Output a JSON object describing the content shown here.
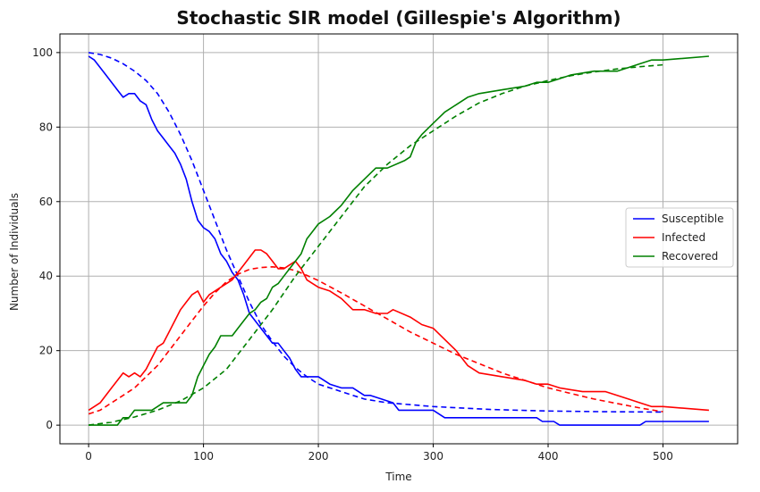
{
  "chart_data": {
    "type": "line",
    "title": "Stochastic SIR model (Gillespie's Algorithm)",
    "xlabel": "Time",
    "ylabel": "Number of Individuals",
    "xlim": [
      -25,
      565
    ],
    "ylim": [
      -5,
      105
    ],
    "xticks": [
      0,
      100,
      200,
      300,
      400,
      500
    ],
    "yticks": [
      0,
      20,
      40,
      60,
      80,
      100
    ],
    "grid": true,
    "legend_position": "center-right",
    "series": [
      {
        "name": "Susceptible",
        "color": "#0000ff",
        "style": "solid",
        "points": [
          [
            0,
            99
          ],
          [
            5,
            98
          ],
          [
            10,
            96
          ],
          [
            15,
            94
          ],
          [
            20,
            92
          ],
          [
            25,
            90
          ],
          [
            30,
            88
          ],
          [
            35,
            89
          ],
          [
            40,
            89
          ],
          [
            45,
            87
          ],
          [
            50,
            86
          ],
          [
            55,
            82
          ],
          [
            60,
            79
          ],
          [
            65,
            77
          ],
          [
            70,
            75
          ],
          [
            75,
            73
          ],
          [
            80,
            70
          ],
          [
            85,
            66
          ],
          [
            90,
            60
          ],
          [
            95,
            55
          ],
          [
            100,
            53
          ],
          [
            105,
            52
          ],
          [
            110,
            50
          ],
          [
            115,
            46
          ],
          [
            120,
            44
          ],
          [
            125,
            41
          ],
          [
            130,
            39
          ],
          [
            135,
            35
          ],
          [
            140,
            30
          ],
          [
            145,
            28
          ],
          [
            150,
            26
          ],
          [
            155,
            24
          ],
          [
            160,
            22
          ],
          [
            165,
            22
          ],
          [
            170,
            20
          ],
          [
            175,
            18
          ],
          [
            180,
            15
          ],
          [
            185,
            13
          ],
          [
            195,
            13
          ],
          [
            200,
            13
          ],
          [
            210,
            11
          ],
          [
            220,
            10
          ],
          [
            230,
            10
          ],
          [
            235,
            9
          ],
          [
            240,
            8
          ],
          [
            245,
            8
          ],
          [
            255,
            7
          ],
          [
            265,
            6
          ],
          [
            270,
            4
          ],
          [
            300,
            4
          ],
          [
            310,
            2
          ],
          [
            390,
            2
          ],
          [
            395,
            1
          ],
          [
            405,
            1
          ],
          [
            410,
            0
          ],
          [
            480,
            0
          ],
          [
            485,
            1
          ],
          [
            540,
            1
          ]
        ]
      },
      {
        "name": "Infected",
        "color": "#ff0000",
        "style": "solid",
        "points": [
          [
            0,
            4
          ],
          [
            5,
            5
          ],
          [
            10,
            6
          ],
          [
            15,
            8
          ],
          [
            20,
            10
          ],
          [
            25,
            12
          ],
          [
            30,
            14
          ],
          [
            35,
            13
          ],
          [
            40,
            14
          ],
          [
            45,
            13
          ],
          [
            50,
            15
          ],
          [
            55,
            18
          ],
          [
            60,
            21
          ],
          [
            65,
            22
          ],
          [
            70,
            25
          ],
          [
            75,
            28
          ],
          [
            80,
            31
          ],
          [
            85,
            33
          ],
          [
            90,
            35
          ],
          [
            95,
            36
          ],
          [
            100,
            33
          ],
          [
            105,
            35
          ],
          [
            110,
            36
          ],
          [
            115,
            37
          ],
          [
            120,
            38
          ],
          [
            125,
            39
          ],
          [
            130,
            41
          ],
          [
            135,
            43
          ],
          [
            140,
            45
          ],
          [
            145,
            47
          ],
          [
            150,
            47
          ],
          [
            155,
            46
          ],
          [
            160,
            44
          ],
          [
            165,
            42
          ],
          [
            170,
            42
          ],
          [
            175,
            43
          ],
          [
            180,
            44
          ],
          [
            185,
            42
          ],
          [
            190,
            39
          ],
          [
            195,
            38
          ],
          [
            200,
            37
          ],
          [
            210,
            36
          ],
          [
            220,
            34
          ],
          [
            230,
            31
          ],
          [
            240,
            31
          ],
          [
            250,
            30
          ],
          [
            260,
            30
          ],
          [
            265,
            31
          ],
          [
            280,
            29
          ],
          [
            290,
            27
          ],
          [
            300,
            26
          ],
          [
            310,
            23
          ],
          [
            320,
            20
          ],
          [
            330,
            16
          ],
          [
            340,
            14
          ],
          [
            360,
            13
          ],
          [
            380,
            12
          ],
          [
            390,
            11
          ],
          [
            400,
            11
          ],
          [
            410,
            10
          ],
          [
            430,
            9
          ],
          [
            450,
            9
          ],
          [
            460,
            8
          ],
          [
            470,
            7
          ],
          [
            480,
            6
          ],
          [
            490,
            5
          ],
          [
            500,
            5
          ],
          [
            540,
            4
          ]
        ]
      },
      {
        "name": "Recovered",
        "color": "#008000",
        "style": "solid",
        "points": [
          [
            0,
            0
          ],
          [
            25,
            0
          ],
          [
            30,
            2
          ],
          [
            35,
            2
          ],
          [
            40,
            4
          ],
          [
            55,
            4
          ],
          [
            60,
            5
          ],
          [
            65,
            6
          ],
          [
            85,
            6
          ],
          [
            90,
            8
          ],
          [
            95,
            13
          ],
          [
            100,
            16
          ],
          [
            105,
            19
          ],
          [
            110,
            21
          ],
          [
            115,
            24
          ],
          [
            125,
            24
          ],
          [
            130,
            26
          ],
          [
            135,
            28
          ],
          [
            140,
            30
          ],
          [
            145,
            31
          ],
          [
            150,
            33
          ],
          [
            155,
            34
          ],
          [
            160,
            37
          ],
          [
            165,
            38
          ],
          [
            170,
            40
          ],
          [
            175,
            42
          ],
          [
            180,
            44
          ],
          [
            185,
            46
          ],
          [
            190,
            50
          ],
          [
            195,
            52
          ],
          [
            200,
            54
          ],
          [
            210,
            56
          ],
          [
            220,
            59
          ],
          [
            230,
            63
          ],
          [
            240,
            66
          ],
          [
            250,
            69
          ],
          [
            260,
            69
          ],
          [
            275,
            71
          ],
          [
            280,
            72
          ],
          [
            285,
            76
          ],
          [
            290,
            78
          ],
          [
            300,
            81
          ],
          [
            310,
            84
          ],
          [
            320,
            86
          ],
          [
            330,
            88
          ],
          [
            340,
            89
          ],
          [
            360,
            90
          ],
          [
            380,
            91
          ],
          [
            390,
            92
          ],
          [
            400,
            92
          ],
          [
            410,
            93
          ],
          [
            420,
            94
          ],
          [
            440,
            95
          ],
          [
            460,
            95
          ],
          [
            470,
            96
          ],
          [
            480,
            97
          ],
          [
            490,
            98
          ],
          [
            500,
            98
          ],
          [
            540,
            99
          ]
        ]
      }
    ],
    "deterministic_series": [
      {
        "color": "#0000ff",
        "style": "dashed",
        "points": [
          [
            0,
            100
          ],
          [
            10,
            99.5
          ],
          [
            20,
            98.5
          ],
          [
            30,
            97
          ],
          [
            40,
            95
          ],
          [
            50,
            92.5
          ],
          [
            60,
            89
          ],
          [
            70,
            84
          ],
          [
            80,
            78
          ],
          [
            90,
            71
          ],
          [
            100,
            63
          ],
          [
            110,
            55
          ],
          [
            120,
            47
          ],
          [
            130,
            40
          ],
          [
            140,
            33
          ],
          [
            150,
            27
          ],
          [
            160,
            22.5
          ],
          [
            170,
            18.5
          ],
          [
            180,
            15.5
          ],
          [
            190,
            13
          ],
          [
            200,
            11
          ],
          [
            220,
            9
          ],
          [
            240,
            7
          ],
          [
            260,
            6
          ],
          [
            280,
            5.5
          ],
          [
            300,
            5
          ],
          [
            350,
            4.2
          ],
          [
            400,
            3.8
          ],
          [
            450,
            3.6
          ],
          [
            500,
            3.5
          ]
        ]
      },
      {
        "color": "#ff0000",
        "style": "dashed",
        "points": [
          [
            0,
            3
          ],
          [
            10,
            4
          ],
          [
            20,
            6
          ],
          [
            30,
            8
          ],
          [
            40,
            10
          ],
          [
            50,
            13
          ],
          [
            60,
            16
          ],
          [
            70,
            20
          ],
          [
            80,
            24
          ],
          [
            90,
            28
          ],
          [
            100,
            32
          ],
          [
            110,
            35.5
          ],
          [
            120,
            38.5
          ],
          [
            130,
            40.5
          ],
          [
            140,
            41.8
          ],
          [
            150,
            42.3
          ],
          [
            160,
            42.5
          ],
          [
            170,
            42.2
          ],
          [
            180,
            41.5
          ],
          [
            190,
            40.2
          ],
          [
            200,
            38.8
          ],
          [
            220,
            35.5
          ],
          [
            240,
            32
          ],
          [
            260,
            28.5
          ],
          [
            280,
            25
          ],
          [
            300,
            22
          ],
          [
            320,
            19
          ],
          [
            340,
            16.5
          ],
          [
            360,
            14
          ],
          [
            380,
            12
          ],
          [
            400,
            10
          ],
          [
            420,
            8.5
          ],
          [
            440,
            7
          ],
          [
            460,
            5.8
          ],
          [
            480,
            4.6
          ],
          [
            500,
            3.6
          ]
        ]
      },
      {
        "color": "#008000",
        "style": "dashed",
        "points": [
          [
            0,
            0
          ],
          [
            20,
            0.8
          ],
          [
            40,
            2.2
          ],
          [
            60,
            4
          ],
          [
            80,
            6.5
          ],
          [
            100,
            10
          ],
          [
            120,
            15
          ],
          [
            140,
            23
          ],
          [
            160,
            31
          ],
          [
            180,
            40
          ],
          [
            200,
            48
          ],
          [
            220,
            56
          ],
          [
            240,
            64
          ],
          [
            260,
            70
          ],
          [
            280,
            75
          ],
          [
            300,
            79
          ],
          [
            320,
            83
          ],
          [
            340,
            86.5
          ],
          [
            360,
            89
          ],
          [
            380,
            91
          ],
          [
            400,
            92.5
          ],
          [
            420,
            93.8
          ],
          [
            440,
            94.8
          ],
          [
            460,
            95.6
          ],
          [
            480,
            96.2
          ],
          [
            500,
            96.7
          ]
        ]
      }
    ]
  }
}
